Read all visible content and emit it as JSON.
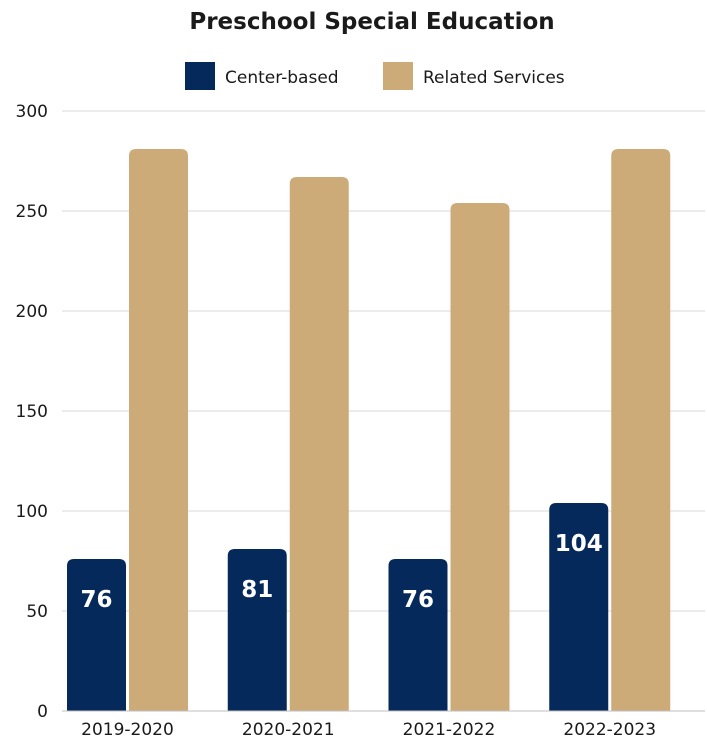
{
  "chart_data": {
    "type": "bar",
    "title": "Preschool Special Education",
    "categories": [
      "2019-2020",
      "2020-2021",
      "2021-2022",
      "2022-2023"
    ],
    "series": [
      {
        "name": "Center-based",
        "values": [
          76,
          81,
          76,
          104
        ],
        "color": "#05295a",
        "data_labels": [
          "76",
          "81",
          "76",
          "104"
        ]
      },
      {
        "name": "Related Services",
        "values": [
          281,
          267,
          254,
          281
        ],
        "color": "#cdab79"
      }
    ],
    "ylim": [
      0,
      300
    ],
    "yticks": [
      "0",
      "50",
      "100",
      "150",
      "200",
      "250",
      "300"
    ],
    "grid": true,
    "legend_position": "top"
  }
}
